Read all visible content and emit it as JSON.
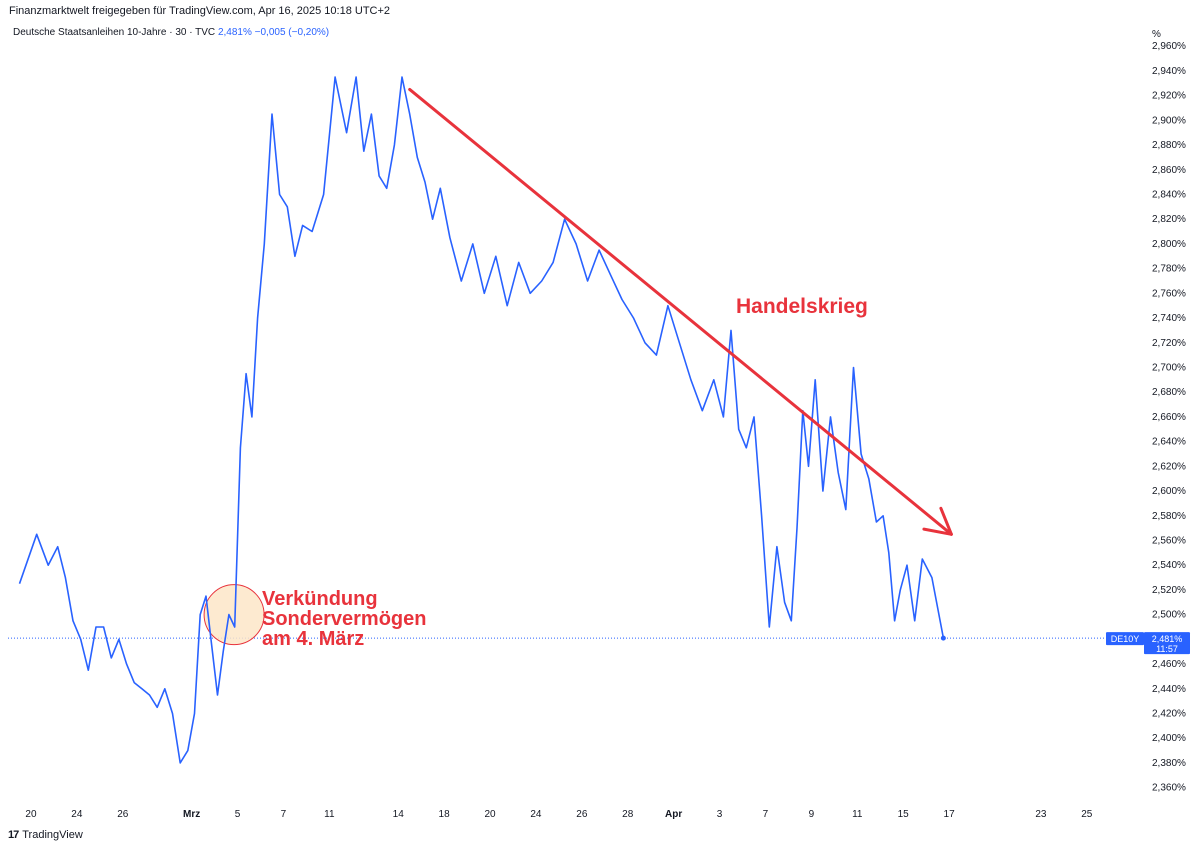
{
  "header": {
    "text": "Finanzmarktwelt freigegeben für TradingView.com, Apr 16, 2025 10:18 UTC+2"
  },
  "legend": {
    "symbol": "Deutsche Staatsanleihen 10-Jahre · 30 · TVC",
    "last": "2,481%",
    "change": "−0,005 (−0,20%)"
  },
  "axis": {
    "unit": "%"
  },
  "price_label": {
    "ticker": "DE10Y",
    "value": "2,481%",
    "countdown": "11:57"
  },
  "annotations": {
    "trade_war": "Handelskrieg",
    "announcement_lines": [
      "Verkündung",
      "Sondervermögen",
      "am 4. März"
    ]
  },
  "footer": {
    "brand": "TradingView",
    "mark": "17"
  },
  "colors": {
    "line": "#2962ff",
    "annotation": "#e8333c",
    "circle_fill": "#fde6c8",
    "circle_stroke": "#e8333c"
  },
  "chart_data": {
    "type": "line",
    "title": "",
    "xlabel": "",
    "ylabel": "%",
    "ylim": [
      2.35,
      2.965
    ],
    "y_ticks": [
      "2,360%",
      "2,380%",
      "2,400%",
      "2,420%",
      "2,440%",
      "2,460%",
      "2,480%",
      "2,500%",
      "2,520%",
      "2,540%",
      "2,560%",
      "2,580%",
      "2,600%",
      "2,620%",
      "2,640%",
      "2,660%",
      "2,680%",
      "2,700%",
      "2,720%",
      "2,740%",
      "2,760%",
      "2,780%",
      "2,800%",
      "2,820%",
      "2,840%",
      "2,860%",
      "2,880%",
      "2,900%",
      "2,920%",
      "2,940%",
      "2,960%"
    ],
    "x_ticks": [
      {
        "label": "20",
        "x": "2025-02-20"
      },
      {
        "label": "24",
        "x": "2025-02-24"
      },
      {
        "label": "26",
        "x": "2025-02-26"
      },
      {
        "label": "Mrz",
        "x": "2025-03-01",
        "bold": true
      },
      {
        "label": "5",
        "x": "2025-03-05"
      },
      {
        "label": "7",
        "x": "2025-03-07"
      },
      {
        "label": "11",
        "x": "2025-03-11"
      },
      {
        "label": "14",
        "x": "2025-03-14"
      },
      {
        "label": "18",
        "x": "2025-03-18"
      },
      {
        "label": "20",
        "x": "2025-03-20"
      },
      {
        "label": "24",
        "x": "2025-03-24"
      },
      {
        "label": "26",
        "x": "2025-03-26"
      },
      {
        "label": "28",
        "x": "2025-03-28"
      },
      {
        "label": "Apr",
        "x": "2025-04-01",
        "bold": true
      },
      {
        "label": "3",
        "x": "2025-04-03"
      },
      {
        "label": "7",
        "x": "2025-04-07"
      },
      {
        "label": "9",
        "x": "2025-04-09"
      },
      {
        "label": "11",
        "x": "2025-04-11"
      },
      {
        "label": "15",
        "x": "2025-04-15"
      },
      {
        "label": "17",
        "x": "2025-04-17"
      },
      {
        "label": "23",
        "x": "2025-04-23"
      },
      {
        "label": "25",
        "x": "2025-04-25"
      }
    ],
    "last_value": 2.481,
    "series": [
      {
        "name": "Deutsche Staatsanleihen 10-Jahre",
        "points": [
          [
            "2025-02-19",
            2.525
          ],
          [
            "2025-02-20",
            2.565
          ],
          [
            "2025-02-20",
            2.54
          ],
          [
            "2025-02-21",
            2.555
          ],
          [
            "2025-02-21",
            2.53
          ],
          [
            "2025-02-21",
            2.495
          ],
          [
            "2025-02-24",
            2.48
          ],
          [
            "2025-02-24",
            2.455
          ],
          [
            "2025-02-24",
            2.49
          ],
          [
            "2025-02-25",
            2.49
          ],
          [
            "2025-02-25",
            2.465
          ],
          [
            "2025-02-25",
            2.48
          ],
          [
            "2025-02-26",
            2.46
          ],
          [
            "2025-02-26",
            2.445
          ],
          [
            "2025-02-26",
            2.44
          ],
          [
            "2025-02-27",
            2.435
          ],
          [
            "2025-02-27",
            2.425
          ],
          [
            "2025-02-27",
            2.44
          ],
          [
            "2025-02-28",
            2.42
          ],
          [
            "2025-02-28",
            2.38
          ],
          [
            "2025-02-28",
            2.39
          ],
          [
            "2025-03-03",
            2.42
          ],
          [
            "2025-03-03",
            2.5
          ],
          [
            "2025-03-03",
            2.515
          ],
          [
            "2025-03-03",
            2.475
          ],
          [
            "2025-03-04",
            2.435
          ],
          [
            "2025-03-04",
            2.47
          ],
          [
            "2025-03-04",
            2.5
          ],
          [
            "2025-03-04",
            2.49
          ],
          [
            "2025-03-05",
            2.635
          ],
          [
            "2025-03-05",
            2.695
          ],
          [
            "2025-03-05",
            2.66
          ],
          [
            "2025-03-05",
            2.74
          ],
          [
            "2025-03-06",
            2.8
          ],
          [
            "2025-03-06",
            2.905
          ],
          [
            "2025-03-06",
            2.84
          ],
          [
            "2025-03-07",
            2.83
          ],
          [
            "2025-03-07",
            2.79
          ],
          [
            "2025-03-07",
            2.815
          ],
          [
            "2025-03-10",
            2.81
          ],
          [
            "2025-03-10",
            2.84
          ],
          [
            "2025-03-11",
            2.935
          ],
          [
            "2025-03-11",
            2.89
          ],
          [
            "2025-03-12",
            2.935
          ],
          [
            "2025-03-12",
            2.875
          ],
          [
            "2025-03-12",
            2.905
          ],
          [
            "2025-03-13",
            2.855
          ],
          [
            "2025-03-13",
            2.845
          ],
          [
            "2025-03-13",
            2.88
          ],
          [
            "2025-03-14",
            2.935
          ],
          [
            "2025-03-14",
            2.905
          ],
          [
            "2025-03-14",
            2.87
          ],
          [
            "2025-03-17",
            2.85
          ],
          [
            "2025-03-17",
            2.82
          ],
          [
            "2025-03-17",
            2.845
          ],
          [
            "2025-03-18",
            2.805
          ],
          [
            "2025-03-18",
            2.77
          ],
          [
            "2025-03-19",
            2.8
          ],
          [
            "2025-03-19",
            2.76
          ],
          [
            "2025-03-20",
            2.79
          ],
          [
            "2025-03-20",
            2.75
          ],
          [
            "2025-03-21",
            2.785
          ],
          [
            "2025-03-21",
            2.76
          ],
          [
            "2025-03-24",
            2.77
          ],
          [
            "2025-03-24",
            2.785
          ],
          [
            "2025-03-25",
            2.82
          ],
          [
            "2025-03-25",
            2.8
          ],
          [
            "2025-03-26",
            2.77
          ],
          [
            "2025-03-26",
            2.795
          ],
          [
            "2025-03-27",
            2.775
          ],
          [
            "2025-03-27",
            2.755
          ],
          [
            "2025-03-28",
            2.74
          ],
          [
            "2025-03-28",
            2.72
          ],
          [
            "2025-03-31",
            2.71
          ],
          [
            "2025-03-31",
            2.75
          ],
          [
            "2025-04-01",
            2.72
          ],
          [
            "2025-04-01",
            2.69
          ],
          [
            "2025-04-02",
            2.665
          ],
          [
            "2025-04-02",
            2.69
          ],
          [
            "2025-04-03",
            2.66
          ],
          [
            "2025-04-03",
            2.73
          ],
          [
            "2025-04-03",
            2.65
          ],
          [
            "2025-04-04",
            2.635
          ],
          [
            "2025-04-04",
            2.66
          ],
          [
            "2025-04-04",
            2.58
          ],
          [
            "2025-04-07",
            2.49
          ],
          [
            "2025-04-07",
            2.555
          ],
          [
            "2025-04-07",
            2.51
          ],
          [
            "2025-04-08",
            2.495
          ],
          [
            "2025-04-08",
            2.57
          ],
          [
            "2025-04-08",
            2.665
          ],
          [
            "2025-04-08",
            2.62
          ],
          [
            "2025-04-09",
            2.69
          ],
          [
            "2025-04-09",
            2.6
          ],
          [
            "2025-04-09",
            2.66
          ],
          [
            "2025-04-10",
            2.615
          ],
          [
            "2025-04-10",
            2.585
          ],
          [
            "2025-04-10",
            2.7
          ],
          [
            "2025-04-11",
            2.63
          ],
          [
            "2025-04-11",
            2.61
          ],
          [
            "2025-04-11",
            2.575
          ],
          [
            "2025-04-14",
            2.58
          ],
          [
            "2025-04-14",
            2.55
          ],
          [
            "2025-04-14",
            2.495
          ],
          [
            "2025-04-14",
            2.52
          ],
          [
            "2025-04-15",
            2.54
          ],
          [
            "2025-04-15",
            2.495
          ],
          [
            "2025-04-15",
            2.545
          ],
          [
            "2025-04-16",
            2.53
          ],
          [
            "2025-04-16",
            2.481
          ]
        ]
      }
    ],
    "trend_arrow": {
      "from": [
        "2025-03-14",
        2.925
      ],
      "to": [
        "2025-04-16",
        2.565
      ]
    },
    "grid": false,
    "legend_position": "top-left"
  }
}
